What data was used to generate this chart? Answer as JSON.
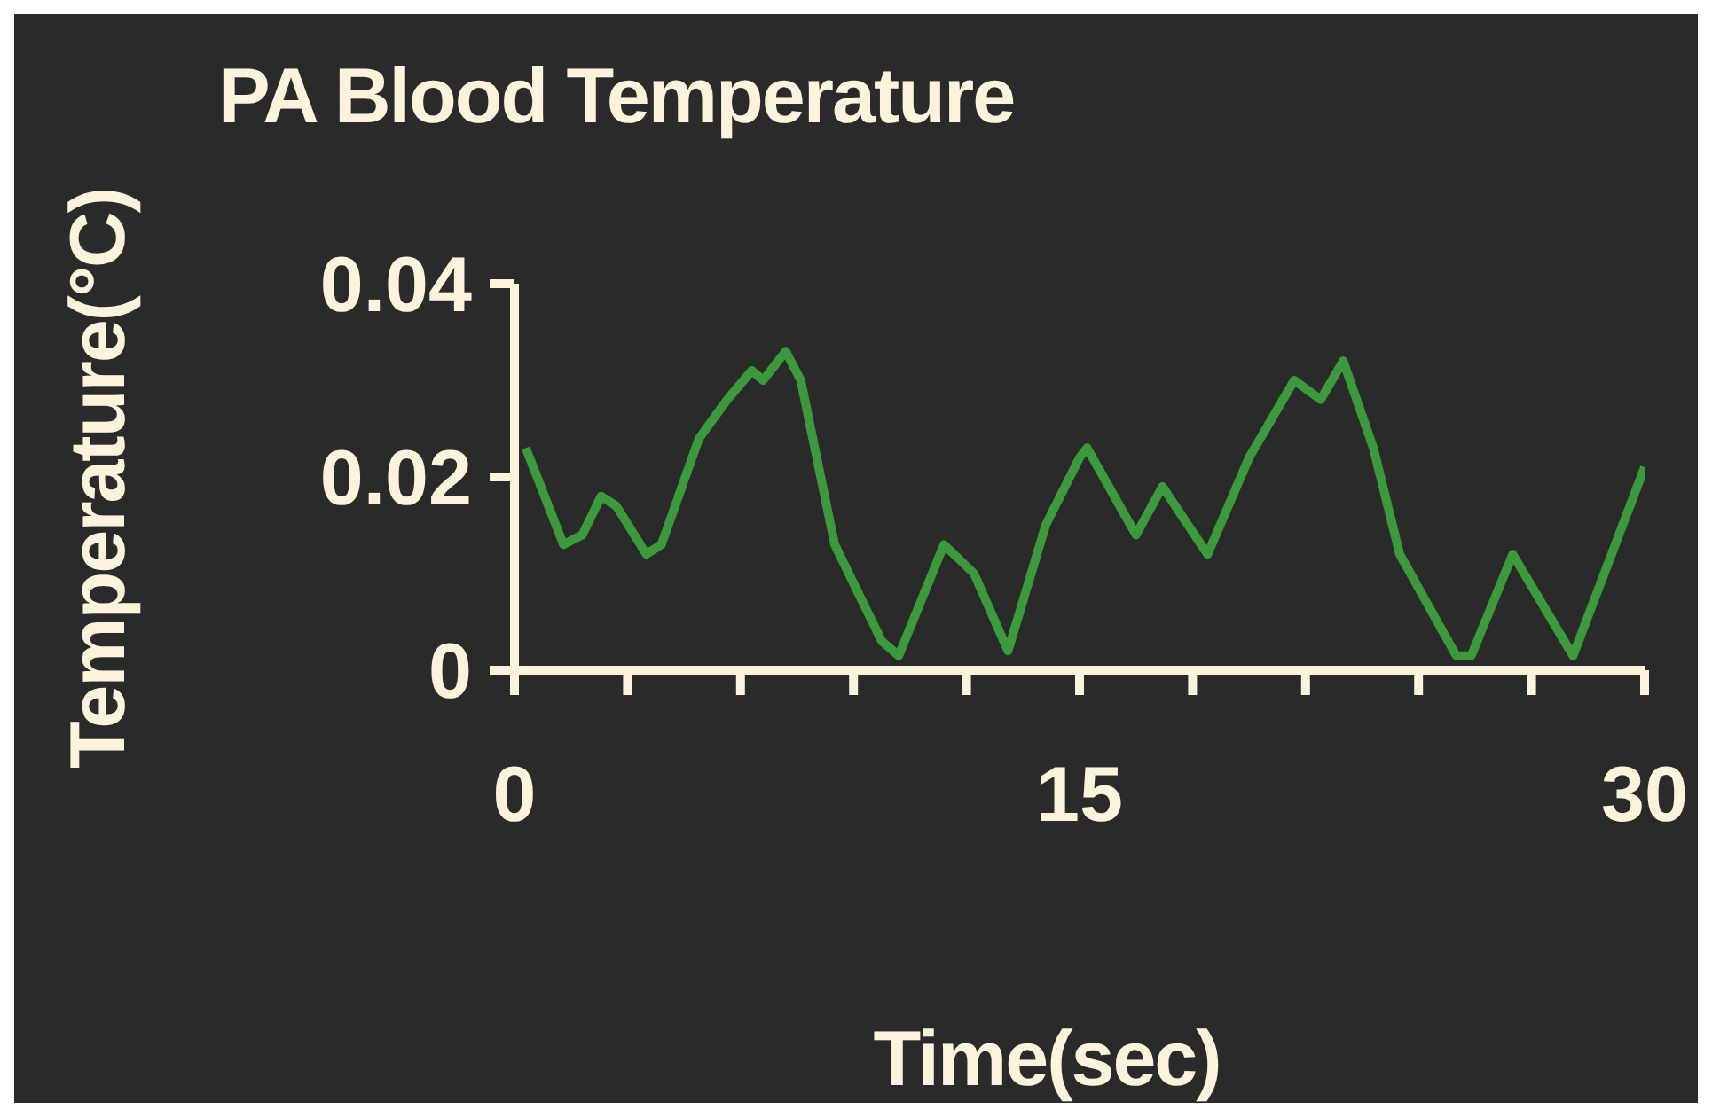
{
  "chart_data": {
    "type": "line",
    "title": "PA Blood Temperature",
    "xlabel": "Time(sec)",
    "ylabel": "Temperature(°C)",
    "x": [
      0.3,
      1.3,
      1.8,
      2.3,
      2.7,
      3.5,
      3.9,
      4.9,
      5.65,
      6.3,
      6.6,
      7.2,
      7.6,
      8.5,
      9.75,
      10.2,
      11.4,
      12.2,
      13.1,
      14.1,
      15.0,
      15.2,
      16.5,
      17.2,
      18.4,
      19.5,
      20.7,
      21.4,
      22.0,
      22.8,
      23.5,
      25.0,
      25.4,
      26.5,
      28.1,
      30.0
    ],
    "series": [
      {
        "color": "#3c9a3c",
        "values": [
          0.023,
          0.013,
          0.014,
          0.018,
          0.017,
          0.012,
          0.013,
          0.024,
          0.028,
          0.031,
          0.03,
          0.033,
          0.03,
          0.013,
          0.003,
          0.0015,
          0.013,
          0.01,
          0.002,
          0.015,
          0.022,
          0.023,
          0.014,
          0.019,
          0.012,
          0.022,
          0.03,
          0.028,
          0.032,
          0.023,
          0.012,
          0.0015,
          0.0015,
          0.012,
          0.0015,
          0.021
        ]
      }
    ],
    "xlim": [
      0,
      30
    ],
    "xticks": [
      0,
      {
        "value": 3,
        "label": null
      },
      {
        "value": 6,
        "label": null
      },
      {
        "value": 9,
        "label": null
      },
      {
        "value": 12,
        "label": null
      },
      15,
      {
        "value": 18,
        "label": null
      },
      {
        "value": 21,
        "label": null
      },
      {
        "value": 24,
        "label": null
      },
      {
        "value": 27,
        "label": null
      },
      30
    ],
    "ylim": [
      0,
      0.04
    ],
    "yticks": [
      0,
      0.02,
      0.04
    ],
    "grid": false,
    "legend": false,
    "marker": "none",
    "line_style": "solid"
  }
}
